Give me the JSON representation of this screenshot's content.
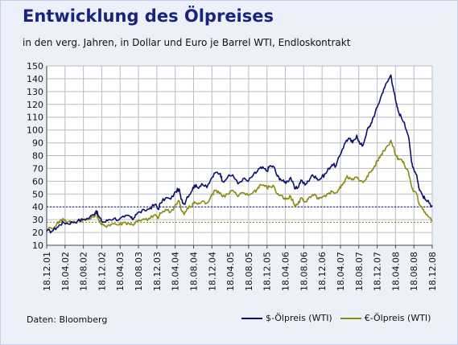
{
  "title": "Entwicklung des Ölpreises",
  "subtitle": "in den verg. Jahren, in Dollar und Euro je Barrel WTI, Endloskontrakt",
  "source": "Daten: Bloomberg",
  "colors": {
    "usd": "#0e0e6b",
    "eur": "#8a8a10",
    "grid": "#b9bcc6",
    "background": "#ecf0f8",
    "plot": "#ffffff",
    "title": "#1a237e"
  },
  "chart_data": {
    "type": "line",
    "title": "Entwicklung des Ölpreises",
    "subtitle": "in den verg. Jahren, in Dollar und Euro je Barrel WTI, Endloskontrakt",
    "xlabel": "",
    "ylabel": "",
    "ylim": [
      10,
      150
    ],
    "yticks": [
      10,
      20,
      30,
      40,
      50,
      60,
      70,
      80,
      90,
      100,
      110,
      120,
      130,
      140,
      150
    ],
    "xticks": [
      "18.12.01",
      "18.04.02",
      "18.08.02",
      "18.12.02",
      "18.04.03",
      "18.08.03",
      "18.12.03",
      "18.04.04",
      "18.08.04",
      "18.12.04",
      "18.04.05",
      "18.08.05",
      "18.12.05",
      "18.04.06",
      "18.08.06",
      "18.12.06",
      "18.04.07",
      "18.08.07",
      "18.12.07",
      "18.04.08",
      "18.08.08",
      "18.12.08"
    ],
    "grid": true,
    "legend_position": "bottom-right",
    "reference_lines": [
      {
        "series": "$-Ölpreis (WTI)",
        "y": 40,
        "style": "dotted"
      },
      {
        "series": "€-Ölpreis (WTI)",
        "y": 28,
        "style": "dotted"
      }
    ],
    "series": [
      {
        "name": "$-Ölpreis (WTI)",
        "points": [
          [
            0,
            21
          ],
          [
            0.5,
            21
          ],
          [
            1,
            24
          ],
          [
            1.3,
            26
          ],
          [
            1.6,
            28
          ],
          [
            2,
            27
          ],
          [
            2.5,
            28
          ],
          [
            3,
            29
          ],
          [
            3.5,
            30
          ],
          [
            4,
            31
          ],
          [
            4.5,
            34
          ],
          [
            4.8,
            37
          ],
          [
            5,
            33
          ],
          [
            5.3,
            29
          ],
          [
            5.6,
            28
          ],
          [
            6,
            30
          ],
          [
            6.5,
            31
          ],
          [
            7,
            30
          ],
          [
            7.5,
            32
          ],
          [
            8,
            33
          ],
          [
            8.3,
            30
          ],
          [
            8.6,
            34
          ],
          [
            9,
            36
          ],
          [
            9.5,
            37
          ],
          [
            10,
            39
          ],
          [
            10.5,
            42
          ],
          [
            10.8,
            38
          ],
          [
            11,
            43
          ],
          [
            11.5,
            47
          ],
          [
            12,
            46
          ],
          [
            12.5,
            52
          ],
          [
            12.8,
            54
          ],
          [
            13,
            46
          ],
          [
            13.3,
            42
          ],
          [
            13.6,
            48
          ],
          [
            14,
            52
          ],
          [
            14.3,
            57
          ],
          [
            14.6,
            55
          ],
          [
            15,
            58
          ],
          [
            15.5,
            55
          ],
          [
            16,
            63
          ],
          [
            16.4,
            67
          ],
          [
            16.8,
            66
          ],
          [
            17,
            60
          ],
          [
            17.5,
            63
          ],
          [
            18,
            65
          ],
          [
            18.5,
            58
          ],
          [
            19,
            62
          ],
          [
            19.5,
            60
          ],
          [
            20,
            65
          ],
          [
            20.3,
            67
          ],
          [
            20.6,
            70
          ],
          [
            21,
            70
          ],
          [
            21.3,
            68
          ],
          [
            21.6,
            72
          ],
          [
            22,
            71
          ],
          [
            22.3,
            64
          ],
          [
            22.6,
            62
          ],
          [
            23,
            59
          ],
          [
            23.3,
            60
          ],
          [
            23.6,
            63
          ],
          [
            24,
            54
          ],
          [
            24.3,
            55
          ],
          [
            24.6,
            61
          ],
          [
            25,
            57
          ],
          [
            25.3,
            60
          ],
          [
            25.6,
            64
          ],
          [
            26,
            64
          ],
          [
            26.3,
            61
          ],
          [
            26.6,
            63
          ],
          [
            27,
            66
          ],
          [
            27.3,
            70
          ],
          [
            27.6,
            73
          ],
          [
            28,
            72
          ],
          [
            28.3,
            79
          ],
          [
            28.6,
            85
          ],
          [
            29,
            92
          ],
          [
            29.3,
            93
          ],
          [
            29.6,
            90
          ],
          [
            30,
            96
          ],
          [
            30.3,
            89
          ],
          [
            30.6,
            88
          ],
          [
            31,
            100
          ],
          [
            31.3,
            103
          ],
          [
            31.6,
            110
          ],
          [
            32,
            118
          ],
          [
            32.3,
            125
          ],
          [
            32.6,
            132
          ],
          [
            33,
            138
          ],
          [
            33.3,
            143
          ],
          [
            33.5,
            134
          ],
          [
            33.8,
            121
          ],
          [
            34,
            115
          ],
          [
            34.3,
            110
          ],
          [
            34.6,
            106
          ],
          [
            35,
            95
          ],
          [
            35.3,
            75
          ],
          [
            35.5,
            70
          ],
          [
            35.8,
            65
          ],
          [
            36,
            55
          ],
          [
            36.3,
            50
          ],
          [
            36.6,
            46
          ],
          [
            37,
            43
          ],
          [
            37.3,
            41
          ]
        ]
      },
      {
        "name": "€-Ölpreis (WTI)",
        "points": [
          [
            0,
            23
          ],
          [
            0.5,
            23
          ],
          [
            1,
            27
          ],
          [
            1.3,
            29
          ],
          [
            1.6,
            31
          ],
          [
            2,
            28
          ],
          [
            2.5,
            28
          ],
          [
            3,
            29
          ],
          [
            3.5,
            30
          ],
          [
            4,
            30
          ],
          [
            4.5,
            32
          ],
          [
            4.8,
            35
          ],
          [
            5,
            31
          ],
          [
            5.3,
            26
          ],
          [
            5.6,
            25
          ],
          [
            6,
            26
          ],
          [
            6.5,
            27
          ],
          [
            7,
            26
          ],
          [
            7.5,
            28
          ],
          [
            8,
            27
          ],
          [
            8.3,
            26
          ],
          [
            8.6,
            28
          ],
          [
            9,
            29
          ],
          [
            9.5,
            30
          ],
          [
            10,
            31
          ],
          [
            10.5,
            34
          ],
          [
            10.8,
            31
          ],
          [
            11,
            35
          ],
          [
            11.5,
            38
          ],
          [
            12,
            36
          ],
          [
            12.5,
            42
          ],
          [
            12.8,
            45
          ],
          [
            13,
            38
          ],
          [
            13.3,
            34
          ],
          [
            13.6,
            39
          ],
          [
            14,
            40
          ],
          [
            14.3,
            44
          ],
          [
            14.6,
            42
          ],
          [
            15,
            44
          ],
          [
            15.5,
            43
          ],
          [
            16,
            50
          ],
          [
            16.4,
            53
          ],
          [
            16.8,
            51
          ],
          [
            17,
            48
          ],
          [
            17.5,
            50
          ],
          [
            18,
            53
          ],
          [
            18.5,
            48
          ],
          [
            19,
            51
          ],
          [
            19.5,
            49
          ],
          [
            20,
            52
          ],
          [
            20.3,
            53
          ],
          [
            20.6,
            57
          ],
          [
            21,
            57
          ],
          [
            21.3,
            55
          ],
          [
            21.6,
            56
          ],
          [
            22,
            56
          ],
          [
            22.3,
            50
          ],
          [
            22.6,
            49
          ],
          [
            23,
            46
          ],
          [
            23.3,
            46
          ],
          [
            23.6,
            48
          ],
          [
            24,
            41
          ],
          [
            24.3,
            42
          ],
          [
            24.6,
            47
          ],
          [
            25,
            44
          ],
          [
            25.3,
            46
          ],
          [
            25.6,
            48
          ],
          [
            26,
            49
          ],
          [
            26.3,
            46
          ],
          [
            26.6,
            47
          ],
          [
            27,
            48
          ],
          [
            27.3,
            51
          ],
          [
            27.6,
            52
          ],
          [
            28,
            51
          ],
          [
            28.3,
            54
          ],
          [
            28.6,
            57
          ],
          [
            29,
            63
          ],
          [
            29.3,
            63
          ],
          [
            29.6,
            62
          ],
          [
            30,
            63
          ],
          [
            30.3,
            60
          ],
          [
            30.6,
            59
          ],
          [
            31,
            64
          ],
          [
            31.3,
            67
          ],
          [
            31.6,
            70
          ],
          [
            32,
            76
          ],
          [
            32.3,
            80
          ],
          [
            32.6,
            84
          ],
          [
            33,
            88
          ],
          [
            33.3,
            92
          ],
          [
            33.5,
            87
          ],
          [
            33.8,
            80
          ],
          [
            34,
            78
          ],
          [
            34.3,
            77
          ],
          [
            34.6,
            73
          ],
          [
            35,
            67
          ],
          [
            35.3,
            56
          ],
          [
            35.5,
            52
          ],
          [
            35.8,
            50
          ],
          [
            36,
            43
          ],
          [
            36.3,
            40
          ],
          [
            36.6,
            36
          ],
          [
            37,
            32
          ],
          [
            37.3,
            29
          ]
        ]
      }
    ]
  }
}
